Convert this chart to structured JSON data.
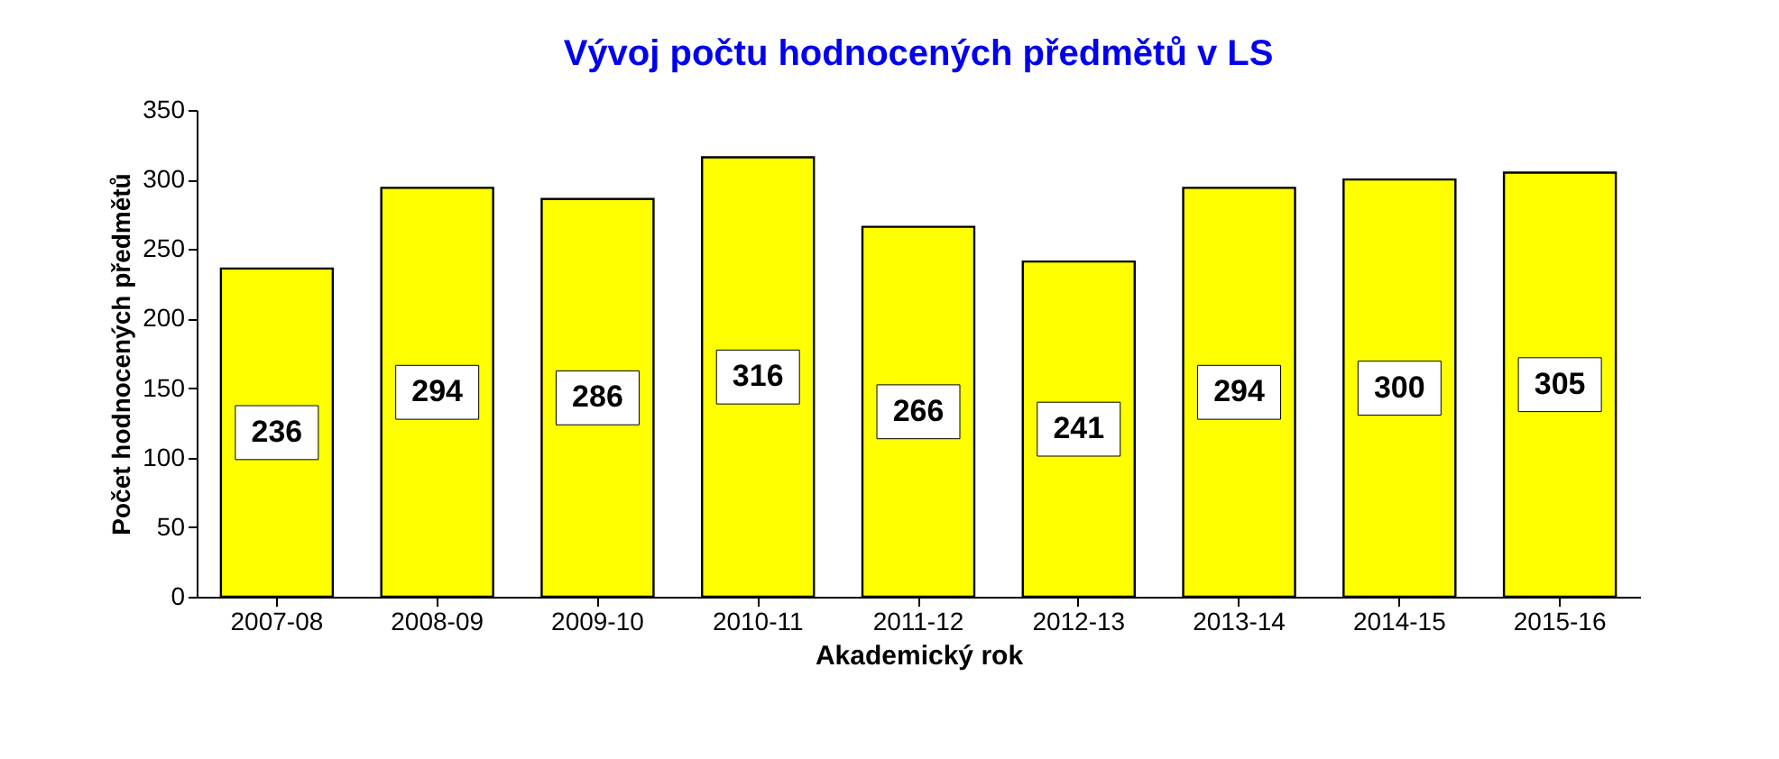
{
  "chart_data": {
    "type": "bar",
    "title": "Vývoj počtu hodnocených předmětů v LS",
    "xlabel": "Akademický rok",
    "ylabel": "Počet  hodnocených  předmětů",
    "categories": [
      "2007-08",
      "2008-09",
      "2009-10",
      "2010-11",
      "2011-12",
      "2012-13",
      "2013-14",
      "2014-15",
      "2015-16"
    ],
    "values": [
      236,
      294,
      286,
      316,
      266,
      241,
      294,
      300,
      305
    ],
    "color": "#ffff00",
    "ylim": [
      0,
      350
    ],
    "yticks": [
      0,
      50,
      100,
      150,
      200,
      250,
      300,
      350
    ],
    "grid": false,
    "data_labels": true
  }
}
